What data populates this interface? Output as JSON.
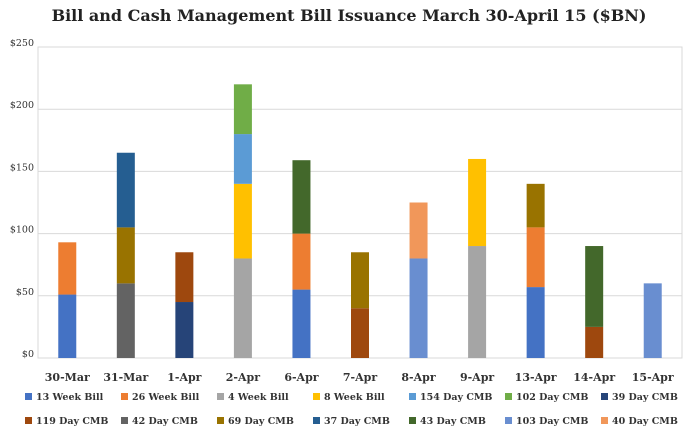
{
  "chart_data": {
    "type": "bar",
    "stacked": true,
    "title": "Bill and Cash Management Bill Issuance March 30-April 15 ($BN)",
    "xlabel": "",
    "ylabel": "",
    "ylim": [
      0,
      250
    ],
    "yticks": [
      0,
      50,
      100,
      150,
      200,
      250
    ],
    "ytick_labels": [
      "$0",
      "$50",
      "$100",
      "$150",
      "$200",
      "$250"
    ],
    "grid": "horizontal",
    "legend_position": "bottom",
    "categories": [
      "30-Mar",
      "31-Mar",
      "1-Apr",
      "2-Apr",
      "6-Apr",
      "7-Apr",
      "8-Apr",
      "9-Apr",
      "13-Apr",
      "14-Apr",
      "15-Apr"
    ],
    "series": [
      {
        "name": "13 Week Bill",
        "color": "#4472C4",
        "values": [
          51,
          0,
          0,
          0,
          55,
          0,
          0,
          0,
          57,
          0,
          0
        ]
      },
      {
        "name": "26 Week Bill",
        "color": "#ED7D31",
        "values": [
          42,
          0,
          0,
          0,
          45,
          0,
          0,
          0,
          48,
          0,
          0
        ]
      },
      {
        "name": "4 Week Bill",
        "color": "#A5A5A5",
        "values": [
          0,
          0,
          0,
          80,
          0,
          0,
          0,
          90,
          0,
          0,
          0
        ]
      },
      {
        "name": "8 Week Bill",
        "color": "#FFC000",
        "values": [
          0,
          0,
          0,
          60,
          0,
          0,
          0,
          70,
          0,
          0,
          0
        ]
      },
      {
        "name": "154 Day CMB",
        "color": "#5B9BD5",
        "values": [
          0,
          0,
          0,
          40,
          0,
          0,
          0,
          0,
          0,
          0,
          0
        ]
      },
      {
        "name": "102 Day CMB",
        "color": "#70AD47",
        "values": [
          0,
          0,
          0,
          40,
          0,
          0,
          0,
          0,
          0,
          0,
          0
        ]
      },
      {
        "name": "39 Day CMB",
        "color": "#264478",
        "values": [
          0,
          0,
          45,
          0,
          0,
          0,
          0,
          0,
          0,
          0,
          0
        ]
      },
      {
        "name": "119 Day CMB",
        "color": "#9E480E",
        "values": [
          0,
          0,
          40,
          0,
          0,
          40,
          0,
          0,
          0,
          25,
          0
        ]
      },
      {
        "name": "42 Day CMB",
        "color": "#636363",
        "values": [
          0,
          60,
          0,
          0,
          0,
          0,
          0,
          0,
          0,
          0,
          0
        ]
      },
      {
        "name": "69 Day CMB",
        "color": "#997300",
        "values": [
          0,
          45,
          0,
          0,
          0,
          45,
          0,
          0,
          35,
          0,
          0
        ]
      },
      {
        "name": "37 Day CMB",
        "color": "#255E91",
        "values": [
          0,
          60,
          0,
          0,
          0,
          0,
          0,
          0,
          0,
          0,
          0
        ]
      },
      {
        "name": "43 Day CMB",
        "color": "#43682B",
        "values": [
          0,
          0,
          0,
          0,
          59,
          0,
          0,
          0,
          0,
          65,
          0
        ]
      },
      {
        "name": "103 Day CMB",
        "color": "#698ED0",
        "values": [
          0,
          0,
          0,
          0,
          0,
          0,
          80,
          0,
          0,
          0,
          60
        ]
      },
      {
        "name": "40 Day CMB",
        "color": "#F1975A",
        "values": [
          0,
          0,
          0,
          0,
          0,
          0,
          45,
          0,
          0,
          0,
          0
        ]
      }
    ]
  }
}
